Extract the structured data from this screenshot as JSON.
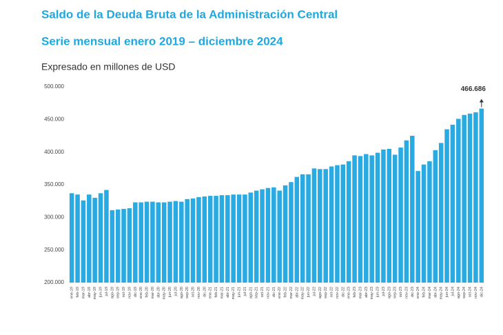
{
  "chart_data": {
    "type": "bar",
    "title": "Saldo de la Deuda Bruta de la Administración Central",
    "subtitle": "Serie mensual enero 2019 – diciembre 2024",
    "y_label": "Expresado en millones de USD",
    "color": "#2aaae2",
    "categories": [
      "ene-19",
      "feb-19",
      "mar-19",
      "abr-19",
      "may-19",
      "jun-19",
      "jul-19",
      "ago-19",
      "sep-19",
      "oct-19",
      "nov-19",
      "dic-19",
      "ene-20",
      "feb-20",
      "mar-20",
      "abr-20",
      "may-20",
      "jun-20",
      "jul-20",
      "ago-20",
      "sep-20",
      "oct-20",
      "nov-20",
      "dic-20",
      "ene-21",
      "feb-21",
      "mar-21",
      "abr-21",
      "may-21",
      "jun-21",
      "jul-21",
      "ago-21",
      "sep-21",
      "oct-21",
      "nov-21",
      "dic-21",
      "ene-22",
      "feb-22",
      "mar-22",
      "abr-22",
      "may-22",
      "jun-22",
      "jul-22",
      "ago-22",
      "sep-22",
      "oct-22",
      "nov-22",
      "dic-22",
      "ene-23",
      "feb-23",
      "mar-23",
      "abr-23",
      "may-23",
      "jun-23",
      "jul-23",
      "ago-23",
      "sep-23",
      "oct-23",
      "nov-23",
      "dic-23",
      "ene-24",
      "feb-24",
      "mar-24",
      "abr-24",
      "may-24",
      "jun-24",
      "jul-24",
      "ago-24",
      "sep-24",
      "oct-24",
      "nov-24",
      "dic-24"
    ],
    "values": [
      337000,
      335000,
      326000,
      335000,
      330000,
      337000,
      342000,
      311000,
      312000,
      313000,
      314000,
      323000,
      323000,
      324000,
      324000,
      323000,
      323000,
      324000,
      325000,
      324000,
      328000,
      329000,
      331000,
      332000,
      333000,
      333000,
      334000,
      334000,
      335000,
      335000,
      335000,
      338000,
      341000,
      343000,
      345000,
      346000,
      341000,
      349000,
      354000,
      362000,
      366000,
      366000,
      375000,
      374000,
      374000,
      378000,
      380000,
      381000,
      386000,
      395000,
      394000,
      397000,
      395000,
      399000,
      404000,
      405000,
      396000,
      407000,
      418000,
      425000,
      371000,
      381000,
      386000,
      403000,
      414000,
      435000,
      442000,
      451000,
      457000,
      459000,
      461000,
      466686
    ],
    "value_labels": [
      null,
      null,
      null,
      null,
      null,
      null,
      null,
      null,
      null,
      null,
      null,
      null,
      null,
      null,
      null,
      null,
      null,
      null,
      null,
      null,
      null,
      null,
      null,
      null,
      null,
      null,
      null,
      null,
      null,
      null,
      null,
      null,
      null,
      null,
      null,
      null,
      null,
      null,
      null,
      null,
      null,
      null,
      null,
      null,
      null,
      null,
      null,
      null,
      null,
      null,
      null,
      null,
      null,
      null,
      null,
      null,
      null,
      null,
      null,
      null,
      null,
      null,
      null,
      null,
      null,
      null,
      null,
      null,
      null,
      null,
      null,
      "466.686"
    ],
    "ylim": [
      200000,
      500000
    ],
    "yticks": [
      {
        "value": 200000,
        "label": "200.000"
      },
      {
        "value": 250000,
        "label": "250.000"
      },
      {
        "value": 300000,
        "label": "300.000"
      },
      {
        "value": 350000,
        "label": "350.000"
      },
      {
        "value": 400000,
        "label": "400.000"
      },
      {
        "value": 450000,
        "label": "450.000"
      },
      {
        "value": 500000,
        "label": "500.000"
      }
    ],
    "grid": false
  }
}
